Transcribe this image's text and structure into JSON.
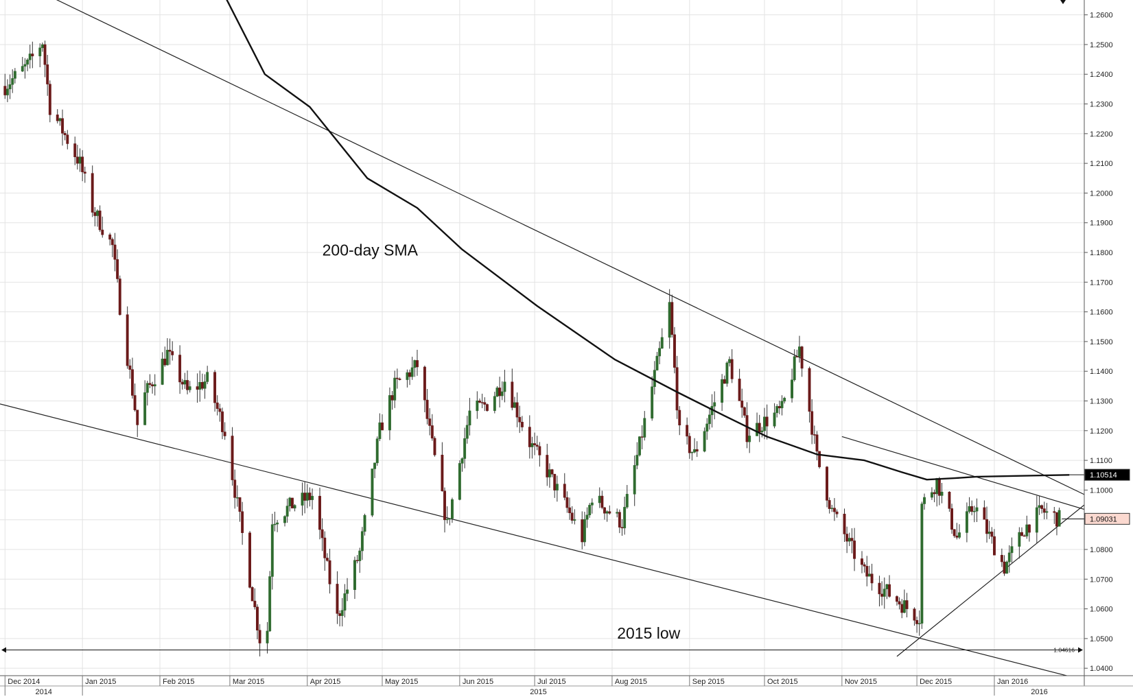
{
  "chart_data": {
    "type": "candlestick",
    "title": "",
    "xlabel": "",
    "ylabel": "",
    "ylim": [
      1.0375,
      1.265
    ],
    "y_ticks": [
      1.04,
      1.05,
      1.06,
      1.07,
      1.08,
      1.09,
      1.1,
      1.11,
      1.12,
      1.13,
      1.14,
      1.15,
      1.16,
      1.17,
      1.18,
      1.19,
      1.2,
      1.21,
      1.22,
      1.23,
      1.24,
      1.25,
      1.26
    ],
    "y_tick_labels": [
      "1.0400",
      "1.0500",
      "1.0600",
      "1.0700",
      "1.0800",
      "1.0900",
      "1.1000",
      "1.1100",
      "1.1200",
      "1.1300",
      "1.1400",
      "1.1500",
      "1.1600",
      "1.1700",
      "1.1800",
      "1.1900",
      "1.2000",
      "1.2100",
      "1.2200",
      "1.2300",
      "1.2400",
      "1.2500",
      "1.2600"
    ],
    "grid": true,
    "months": [
      {
        "label": "Dec 2014",
        "start": "2014-12-01"
      },
      {
        "label": "Jan 2015",
        "start": "2015-01-01"
      },
      {
        "label": "Feb 2015",
        "start": "2015-02-01"
      },
      {
        "label": "Mar 2015",
        "start": "2015-03-01"
      },
      {
        "label": "Apr 2015",
        "start": "2015-04-01"
      },
      {
        "label": "May 2015",
        "start": "2015-05-01"
      },
      {
        "label": "Jun 2015",
        "start": "2015-06-01"
      },
      {
        "label": "Jul 2015",
        "start": "2015-07-01"
      },
      {
        "label": "Aug 2015",
        "start": "2015-08-01"
      },
      {
        "label": "Sep 2015",
        "start": "2015-09-01"
      },
      {
        "label": "Oct 2015",
        "start": "2015-10-01"
      },
      {
        "label": "Nov 2015",
        "start": "2015-11-01"
      },
      {
        "label": "Dec 2015",
        "start": "2015-12-01"
      },
      {
        "label": "Jan 2016",
        "start": "2016-01-01"
      }
    ],
    "years": [
      {
        "label": "2014",
        "start": "2014-12-01",
        "end": "2015-01-01"
      },
      {
        "label": "2015",
        "start": "2015-01-01",
        "end": "2016-01-01"
      },
      {
        "label": "2016",
        "start": "2016-01-01",
        "end": "2016-02-06"
      }
    ],
    "x_range": [
      "2014-11-29",
      "2016-02-06"
    ],
    "closes": [
      {
        "date": "2014-12-01",
        "close": 1.236
      },
      {
        "date": "2014-12-10",
        "close": 1.243
      },
      {
        "date": "2014-12-16",
        "close": 1.251
      },
      {
        "date": "2014-12-19",
        "close": 1.229
      },
      {
        "date": "2014-12-31",
        "close": 1.21
      },
      {
        "date": "2015-01-05",
        "close": 1.195
      },
      {
        "date": "2015-01-13",
        "close": 1.182
      },
      {
        "date": "2015-01-16",
        "close": 1.162
      },
      {
        "date": "2015-01-23",
        "close": 1.122
      },
      {
        "date": "2015-01-26",
        "close": 1.132
      },
      {
        "date": "2015-02-04",
        "close": 1.146
      },
      {
        "date": "2015-02-12",
        "close": 1.133
      },
      {
        "date": "2015-02-20",
        "close": 1.137
      },
      {
        "date": "2015-02-27",
        "close": 1.12
      },
      {
        "date": "2015-03-06",
        "close": 1.085
      },
      {
        "date": "2015-03-13",
        "close": 1.05
      },
      {
        "date": "2015-03-16",
        "close": 1.053
      },
      {
        "date": "2015-03-18",
        "close": 1.09
      },
      {
        "date": "2015-03-26",
        "close": 1.095
      },
      {
        "date": "2015-04-03",
        "close": 1.098
      },
      {
        "date": "2015-04-13",
        "close": 1.057
      },
      {
        "date": "2015-04-22",
        "close": 1.079
      },
      {
        "date": "2015-04-30",
        "close": 1.12
      },
      {
        "date": "2015-05-06",
        "close": 1.135
      },
      {
        "date": "2015-05-15",
        "close": 1.142
      },
      {
        "date": "2015-05-27",
        "close": 1.088
      },
      {
        "date": "2015-06-05",
        "close": 1.126
      },
      {
        "date": "2015-06-12",
        "close": 1.129
      },
      {
        "date": "2015-06-19",
        "close": 1.137
      },
      {
        "date": "2015-06-29",
        "close": 1.116
      },
      {
        "date": "2015-07-07",
        "close": 1.105
      },
      {
        "date": "2015-07-20",
        "close": 1.084
      },
      {
        "date": "2015-07-24",
        "close": 1.098
      },
      {
        "date": "2015-08-05",
        "close": 1.089
      },
      {
        "date": "2015-08-12",
        "close": 1.115
      },
      {
        "date": "2015-08-24",
        "close": 1.162
      },
      {
        "date": "2015-08-28",
        "close": 1.119
      },
      {
        "date": "2015-09-03",
        "close": 1.112
      },
      {
        "date": "2015-09-17",
        "close": 1.143
      },
      {
        "date": "2015-09-24",
        "close": 1.119
      },
      {
        "date": "2015-10-08",
        "close": 1.127
      },
      {
        "date": "2015-10-15",
        "close": 1.148
      },
      {
        "date": "2015-10-22",
        "close": 1.111
      },
      {
        "date": "2015-10-28",
        "close": 1.093
      },
      {
        "date": "2015-11-10",
        "close": 1.072
      },
      {
        "date": "2015-11-20",
        "close": 1.065
      },
      {
        "date": "2015-12-02",
        "close": 1.057
      },
      {
        "date": "2015-12-03",
        "close": 1.095
      },
      {
        "date": "2015-12-09",
        "close": 1.103
      },
      {
        "date": "2015-12-17",
        "close": 1.084
      },
      {
        "date": "2015-12-24",
        "close": 1.095
      },
      {
        "date": "2016-01-05",
        "close": 1.074
      },
      {
        "date": "2016-01-13",
        "close": 1.087
      },
      {
        "date": "2016-01-20",
        "close": 1.093
      },
      {
        "date": "2016-01-27",
        "close": 1.0903
      }
    ],
    "sma200": [
      {
        "date": "2015-02-26",
        "value": 1.268
      },
      {
        "date": "2015-03-15",
        "value": 1.24
      },
      {
        "date": "2015-04-02",
        "value": 1.229
      },
      {
        "date": "2015-04-25",
        "value": 1.205
      },
      {
        "date": "2015-05-15",
        "value": 1.195
      },
      {
        "date": "2015-06-02",
        "value": 1.181
      },
      {
        "date": "2015-07-02",
        "value": 1.162
      },
      {
        "date": "2015-08-02",
        "value": 1.144
      },
      {
        "date": "2015-08-27",
        "value": 1.133
      },
      {
        "date": "2015-09-15",
        "value": 1.125
      },
      {
        "date": "2015-10-02",
        "value": 1.118
      },
      {
        "date": "2015-10-22",
        "value": 1.112
      },
      {
        "date": "2015-11-10",
        "value": 1.11
      },
      {
        "date": "2015-11-25",
        "value": 1.106
      },
      {
        "date": "2015-12-05",
        "value": 1.1035
      },
      {
        "date": "2015-12-16",
        "value": 1.104
      },
      {
        "date": "2015-12-25",
        "value": 1.1045
      },
      {
        "date": "2016-01-31",
        "value": 1.1051
      }
    ],
    "trendlines": [
      {
        "name": "upper-falling",
        "from": {
          "date": "2014-12-12",
          "value": 1.269
        },
        "to": {
          "date": "2016-02-06",
          "value": 1.0985
        }
      },
      {
        "name": "lower-falling",
        "from": {
          "date": "2014-11-29",
          "value": 1.129
        },
        "to": {
          "date": "2016-02-06",
          "value": 1.036
        }
      },
      {
        "name": "short-resistance",
        "from": {
          "date": "2015-11-01",
          "value": 1.118
        },
        "to": {
          "date": "2016-02-06",
          "value": 1.0935
        }
      },
      {
        "name": "rising-support",
        "from": {
          "date": "2015-11-23",
          "value": 1.044
        },
        "to": {
          "date": "2016-02-06",
          "value": 1.095
        }
      }
    ],
    "low_line": {
      "value": 1.04616,
      "label": "1.04616"
    },
    "current_price": {
      "value": 1.09031,
      "label": "1.09031"
    },
    "sma_price": {
      "value": 1.10514,
      "label": "1.10514"
    },
    "annotations": [
      {
        "text": "200-day SMA",
        "date": "2015-04-07",
        "value": 1.179
      },
      {
        "text": "2015 low",
        "date": "2015-08-03",
        "value": 1.05
      }
    ],
    "colors": {
      "bull": "#2f6b2f",
      "bear": "#6b1a1a",
      "current_tag": "#fbd9d0",
      "sma_tag": "#000000",
      "grid": "#e3e3e3"
    }
  }
}
